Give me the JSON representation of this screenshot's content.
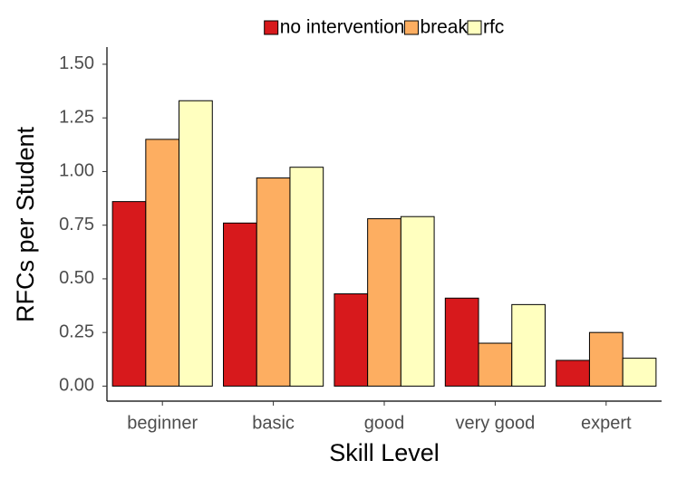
{
  "chart_data": {
    "type": "bar",
    "x_label": "Skill Level",
    "y_label": "RFCs per Student",
    "categories": [
      "beginner",
      "basic",
      "good",
      "very good",
      "expert"
    ],
    "series": [
      {
        "name": "no intervention",
        "color": "#d7191c",
        "values": [
          0.86,
          0.76,
          0.43,
          0.41,
          0.12
        ]
      },
      {
        "name": "break",
        "color": "#fdae61",
        "values": [
          1.15,
          0.97,
          0.78,
          0.2,
          0.25
        ]
      },
      {
        "name": "rfc",
        "color": "#ffffbf",
        "values": [
          1.33,
          1.02,
          0.79,
          0.38,
          0.13
        ]
      }
    ],
    "ylim": [
      -0.07,
      1.58
    ],
    "yticks": [
      {
        "value": 0,
        "label": "0.00"
      },
      {
        "value": 0.25,
        "label": "0.25"
      },
      {
        "value": 0.5,
        "label": "0.50"
      },
      {
        "value": 0.75,
        "label": "0.75"
      },
      {
        "value": 1,
        "label": "1.00"
      },
      {
        "value": 1.25,
        "label": "1.25"
      },
      {
        "value": 1.5,
        "label": "1.50"
      }
    ],
    "grid": false,
    "legend": "top"
  }
}
